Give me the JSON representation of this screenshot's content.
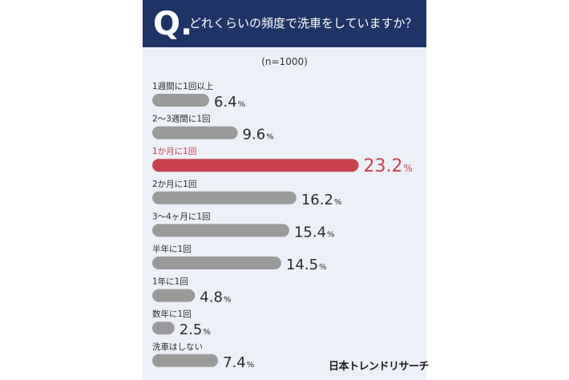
{
  "header": {
    "q_mark": "Q.",
    "question": "どれくらいの頻度で洗車をしていますか？"
  },
  "n_label": "(n=1000)",
  "logo_text": "日本トレンドリサーチ",
  "colors": {
    "header_bg": "#1f3466",
    "card_bg": "#ecf0f7",
    "bar_default": "#9a9a9a",
    "bar_highlight": "#c9414a",
    "label_highlight": "#c9414a"
  },
  "chart_data": {
    "type": "bar",
    "orientation": "horizontal",
    "unit": "%",
    "highlight_index": 2,
    "categories": [
      "1週間に1回以上",
      "2〜3週間に1回",
      "1か月に1回",
      "2か月に1回",
      "3〜4ヶ月に1回",
      "半年に1回",
      "1年に1回",
      "数年に1回",
      "洗車はしない"
    ],
    "values": [
      6.4,
      9.6,
      23.2,
      16.2,
      15.4,
      14.5,
      4.8,
      2.5,
      7.4
    ],
    "value_labels": [
      "6.4",
      "9.6",
      "23.2",
      "16.2",
      "15.4",
      "14.5",
      "4.8",
      "2.5",
      "7.4"
    ]
  }
}
